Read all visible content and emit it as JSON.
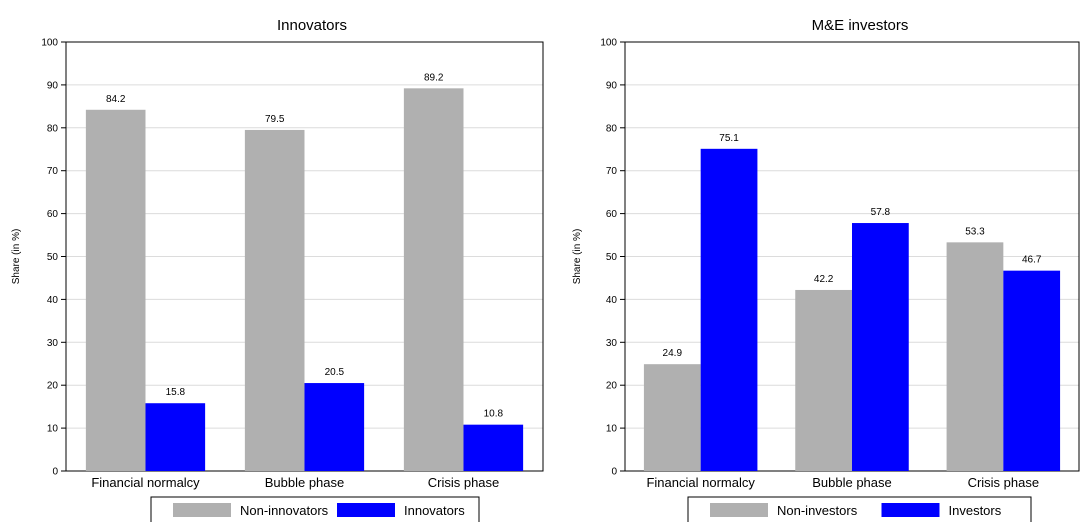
{
  "chart_data": [
    {
      "type": "bar",
      "title": "Innovators",
      "ylabel": "Share (in %)",
      "xlabel": "",
      "categories": [
        "Financial normalcy",
        "Bubble phase",
        "Crisis phase"
      ],
      "ylim": [
        0,
        100
      ],
      "yticks": [
        0,
        10,
        20,
        30,
        40,
        50,
        60,
        70,
        80,
        90,
        100
      ],
      "grid": true,
      "legend_position": "bottom",
      "series": [
        {
          "name": "Non-innovators",
          "color": "#b0b0b0",
          "values": [
            84.2,
            79.5,
            89.2
          ],
          "labels": [
            "84.2",
            "79.5",
            "89.2"
          ]
        },
        {
          "name": "Innovators",
          "color": "#0000ff",
          "values": [
            15.8,
            20.5,
            10.8
          ],
          "labels": [
            "15.8",
            "20.5",
            "10.8"
          ]
        }
      ]
    },
    {
      "type": "bar",
      "title": "M&E investors",
      "ylabel": "Share (in %)",
      "xlabel": "",
      "categories": [
        "Financial normalcy",
        "Bubble phase",
        "Crisis phase"
      ],
      "ylim": [
        0,
        100
      ],
      "yticks": [
        0,
        10,
        20,
        30,
        40,
        50,
        60,
        70,
        80,
        90,
        100
      ],
      "grid": true,
      "legend_position": "bottom",
      "series": [
        {
          "name": "Non-investors",
          "color": "#b0b0b0",
          "values": [
            24.9,
            42.2,
            53.3
          ],
          "labels": [
            "24.9",
            "42.2",
            "53.3"
          ]
        },
        {
          "name": "Investors",
          "color": "#0000ff",
          "values": [
            75.1,
            57.8,
            46.7
          ],
          "labels": [
            "75.1",
            "57.8",
            "46.7"
          ]
        }
      ]
    }
  ]
}
